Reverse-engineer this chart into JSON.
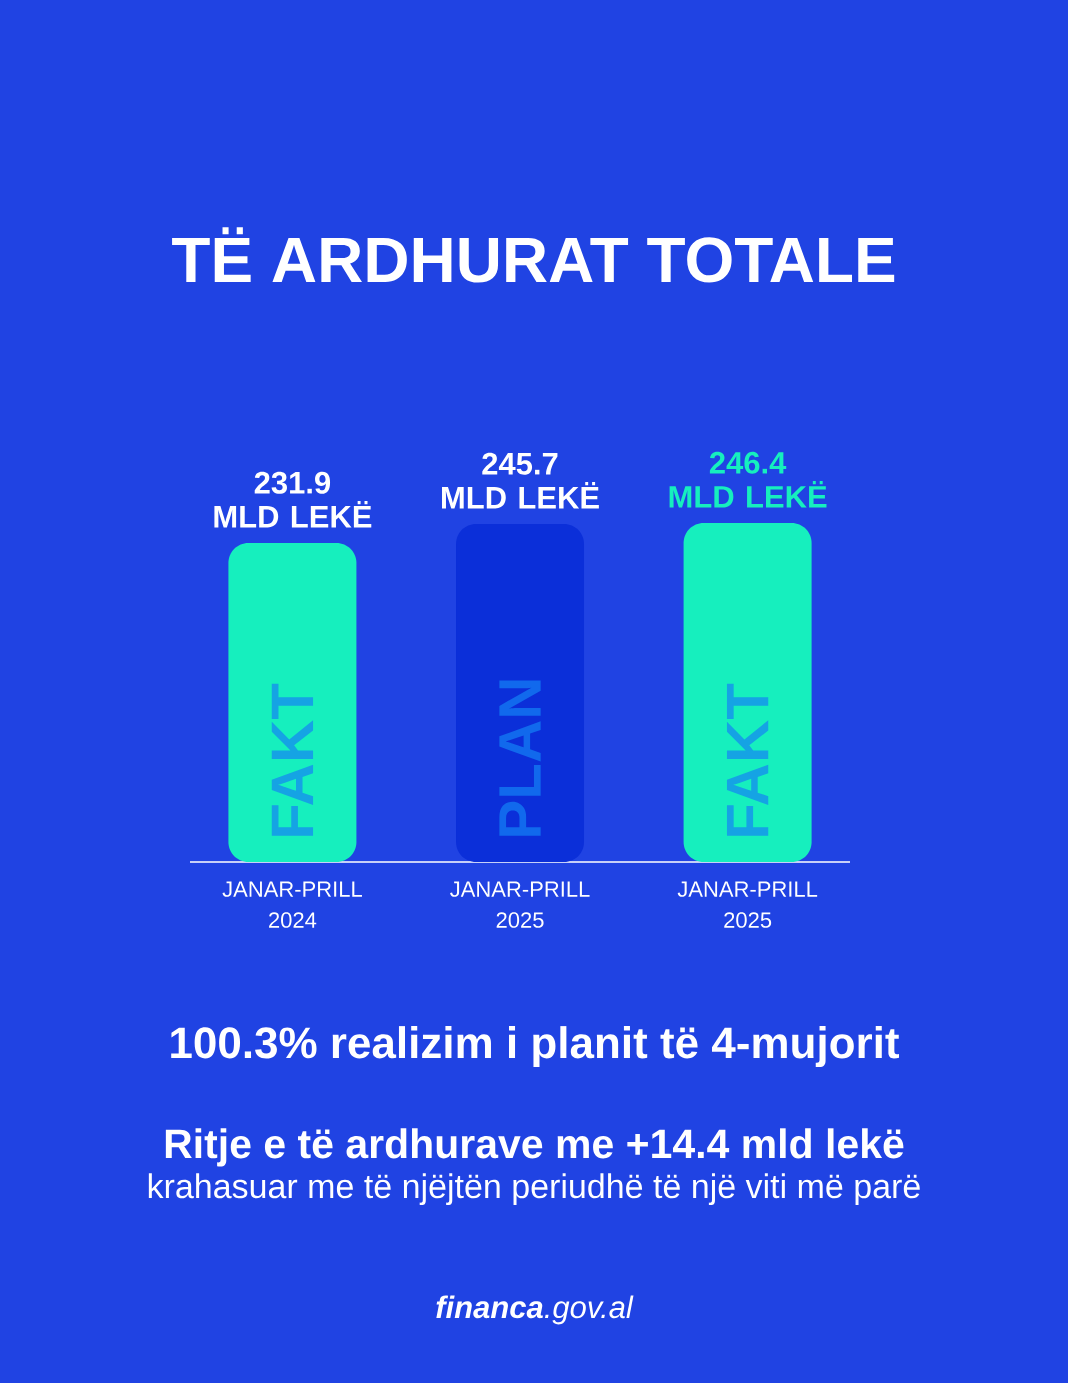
{
  "chart_data": {
    "type": "bar",
    "title": "TË ARDHURAT TOTALE",
    "categories": [
      "JANAR-PRILL\n2024",
      "JANAR-PRILL\n2025",
      "JANAR-PRILL\n2025"
    ],
    "series": [
      {
        "name": "FAKT",
        "color": "#16efbe",
        "values": [
          231.9,
          null,
          246.4
        ],
        "value_labels": [
          "231.9\nMLD LEKË",
          null,
          "246.4\nMLD LEKË"
        ]
      },
      {
        "name": "PLAN",
        "color": "#0b2fd9",
        "values": [
          null,
          245.7,
          null
        ],
        "value_labels": [
          null,
          "245.7\nMLD LEKË",
          null
        ]
      }
    ],
    "tick_labels": "x",
    "annotations": [
      "100.3% realizim i planit të 4-mujorit",
      "Ritje e të ardhurave me +14.4 mld lekë",
      "krahasuar me të njëjtën periudhë të një viti më parë",
      "**financa**.gov.al"
    ]
  }
}
